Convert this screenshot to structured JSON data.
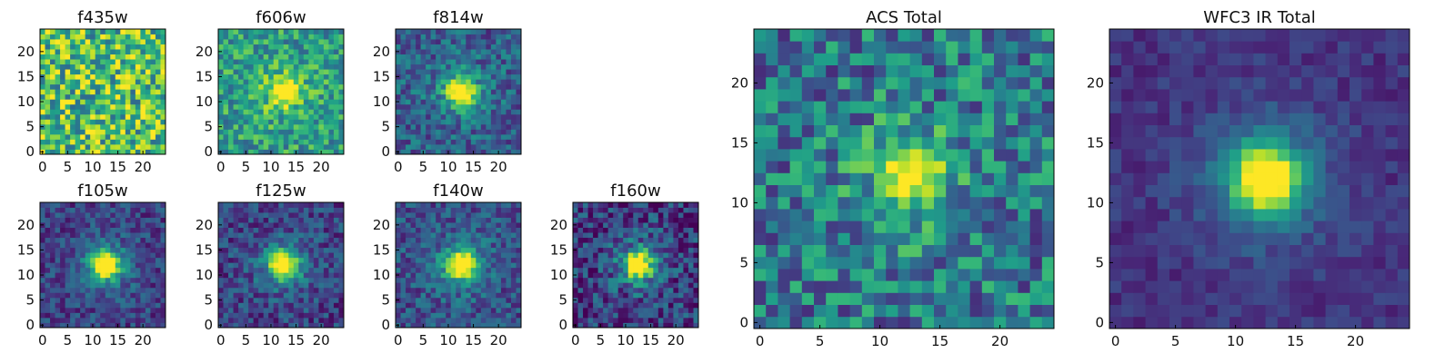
{
  "figure": {
    "colormap": "viridis",
    "cutout_size_px": 25
  },
  "chart_data": [
    {
      "type": "heatmap",
      "title": "f435w",
      "source_peak": 0.0,
      "noise": 0.45,
      "baseline": 0.7,
      "seed": 11,
      "xticks": [
        "0",
        "5",
        "10",
        "15",
        "20"
      ],
      "yticks": [
        "0",
        "5",
        "10",
        "15",
        "20"
      ],
      "xlim": [
        0,
        24
      ],
      "ylim": [
        0,
        24
      ]
    },
    {
      "type": "heatmap",
      "title": "f606w",
      "source_peak": 0.55,
      "noise": 0.3,
      "baseline": 0.55,
      "seed": 22,
      "xticks": [
        "0",
        "5",
        "10",
        "15",
        "20"
      ],
      "yticks": [
        "0",
        "5",
        "10",
        "15",
        "20"
      ],
      "xlim": [
        0,
        24
      ],
      "ylim": [
        0,
        24
      ]
    },
    {
      "type": "heatmap",
      "title": "f814w",
      "source_peak": 0.75,
      "noise": 0.25,
      "baseline": 0.3,
      "seed": 33,
      "xticks": [
        "0",
        "5",
        "10",
        "15",
        "20"
      ],
      "yticks": [
        "0",
        "5",
        "10",
        "15",
        "20"
      ],
      "xlim": [
        0,
        24
      ],
      "ylim": [
        0,
        24
      ]
    },
    {
      "type": "heatmap",
      "title": "f105w",
      "source_peak": 0.85,
      "noise": 0.2,
      "baseline": 0.2,
      "seed": 44,
      "xticks": [
        "0",
        "5",
        "10",
        "15",
        "20"
      ],
      "yticks": [
        "0",
        "5",
        "10",
        "15",
        "20"
      ],
      "xlim": [
        0,
        24
      ],
      "ylim": [
        0,
        24
      ]
    },
    {
      "type": "heatmap",
      "title": "f125w",
      "source_peak": 0.85,
      "noise": 0.22,
      "baseline": 0.2,
      "seed": 55,
      "xticks": [
        "0",
        "5",
        "10",
        "15",
        "20"
      ],
      "yticks": [
        "0",
        "5",
        "10",
        "15",
        "20"
      ],
      "xlim": [
        0,
        24
      ],
      "ylim": [
        0,
        24
      ]
    },
    {
      "type": "heatmap",
      "title": "f140w",
      "source_peak": 0.85,
      "noise": 0.22,
      "baseline": 0.25,
      "seed": 66,
      "xticks": [
        "0",
        "5",
        "10",
        "15",
        "20"
      ],
      "yticks": [
        "0",
        "5",
        "10",
        "15",
        "20"
      ],
      "xlim": [
        0,
        24
      ],
      "ylim": [
        0,
        24
      ]
    },
    {
      "type": "heatmap",
      "title": "f160w",
      "source_peak": 0.85,
      "noise": 0.28,
      "baseline": 0.18,
      "seed": 77,
      "xticks": [
        "0",
        "5",
        "10",
        "15",
        "20"
      ],
      "yticks": [
        "0",
        "5",
        "10",
        "15",
        "20"
      ],
      "xlim": [
        0,
        24
      ],
      "ylim": [
        0,
        24
      ]
    },
    {
      "type": "heatmap",
      "title": "ACS Total",
      "source_peak": 0.55,
      "noise": 0.35,
      "baseline": 0.4,
      "seed": 88,
      "xticks": [
        "0",
        "5",
        "10",
        "15",
        "20"
      ],
      "yticks": [
        "0",
        "5",
        "10",
        "15",
        "20"
      ],
      "xlim": [
        0,
        24
      ],
      "ylim": [
        0,
        24
      ]
    },
    {
      "type": "heatmap",
      "title": "WFC3 IR Total",
      "source_peak": 0.9,
      "noise": 0.1,
      "baseline": 0.15,
      "seed": 99,
      "xticks": [
        "0",
        "5",
        "10",
        "15",
        "20"
      ],
      "yticks": [
        "0",
        "5",
        "10",
        "15",
        "20"
      ],
      "xlim": [
        0,
        24
      ],
      "ylim": [
        0,
        24
      ]
    }
  ]
}
